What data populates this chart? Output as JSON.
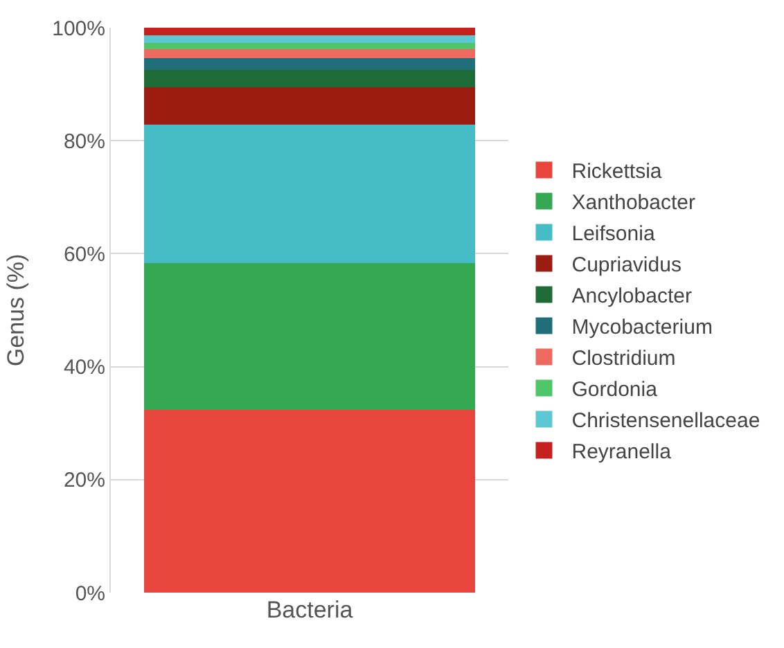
{
  "chart_data": {
    "type": "bar",
    "stacked": true,
    "ylabel": "Genus (%)",
    "categories": [
      "Bacteria"
    ],
    "ylim": [
      0,
      100
    ],
    "yticks": [
      {
        "value": 0,
        "label": "0%"
      },
      {
        "value": 20,
        "label": "20%"
      },
      {
        "value": 40,
        "label": "40%"
      },
      {
        "value": 60,
        "label": "60%"
      },
      {
        "value": 80,
        "label": "80%"
      },
      {
        "value": 100,
        "label": "100%"
      }
    ],
    "grid": "y",
    "legend": "right",
    "series": [
      {
        "name": "Rickettsia",
        "color": "#e8453c",
        "values": [
          32.3
        ]
      },
      {
        "name": "Xanthobacter",
        "color": "#34a853",
        "values": [
          26.0
        ]
      },
      {
        "name": "Leifsonia",
        "color": "#46bdc6",
        "values": [
          24.5
        ]
      },
      {
        "name": "Cupriavidus",
        "color": "#9c1c12",
        "values": [
          6.7
        ]
      },
      {
        "name": "Ancylobacter",
        "color": "#1e6b37",
        "values": [
          3.0
        ]
      },
      {
        "name": "Mycobacterium",
        "color": "#1f6e7a",
        "values": [
          2.1
        ]
      },
      {
        "name": "Clostridium",
        "color": "#ee6a60",
        "values": [
          1.6
        ]
      },
      {
        "name": "Gordonia",
        "color": "#4fc66a",
        "values": [
          1.1
        ]
      },
      {
        "name": "Christensenellaceae",
        "color": "#5cc8d2",
        "values": [
          1.3
        ]
      },
      {
        "name": "Reyranella",
        "color": "#c5221f",
        "values": [
          1.4
        ]
      }
    ]
  }
}
